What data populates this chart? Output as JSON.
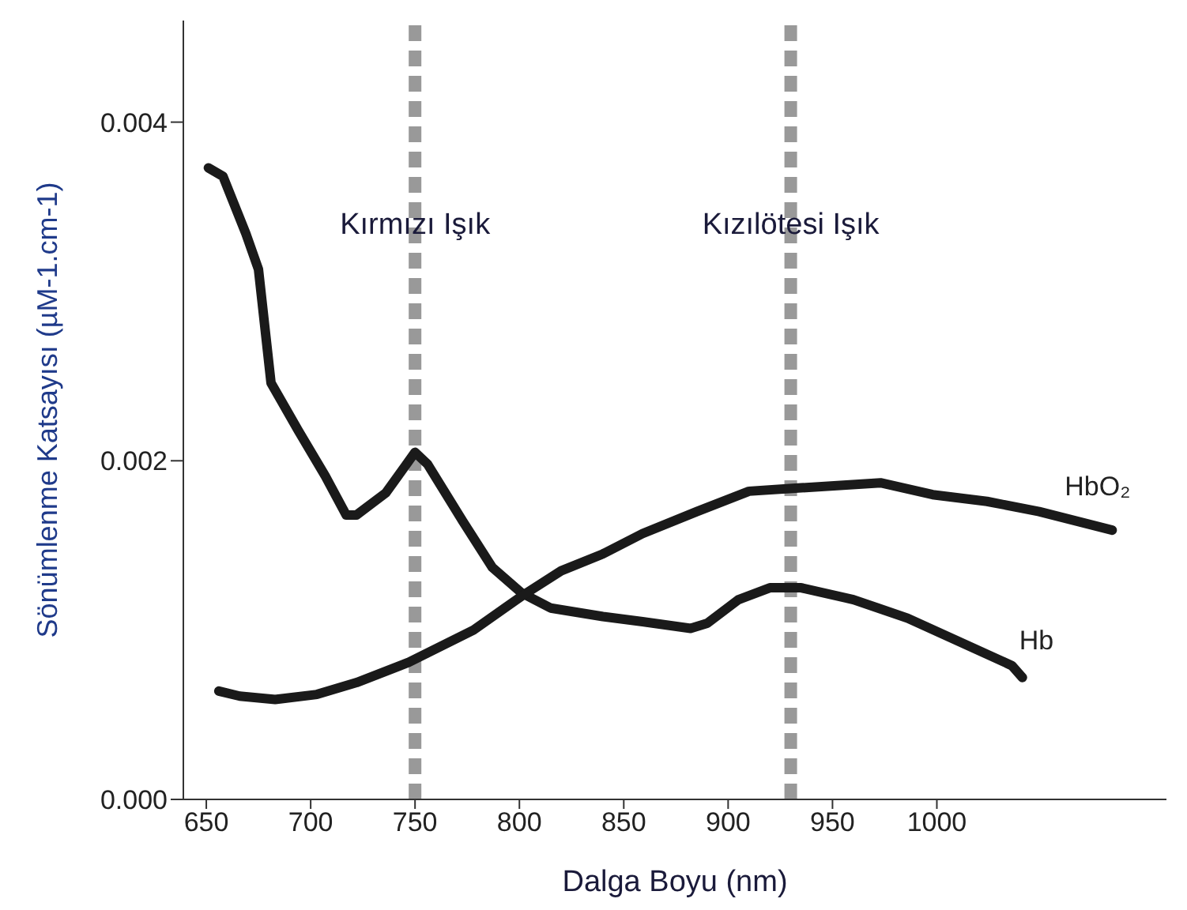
{
  "chart_data": {
    "type": "line",
    "xlabel": "Dalga Boyu (nm)",
    "ylabel": "Sönümlenme Katsayısı (µM-1.cm-1)",
    "xlim": [
      639,
      1110
    ],
    "xticks": [
      650,
      700,
      750,
      800,
      850,
      900,
      950,
      1000
    ],
    "ylim": [
      0,
      0.0046
    ],
    "yticks": [
      {
        "value": 0,
        "label": "0.000"
      },
      {
        "value": 0.002,
        "label": "0.002"
      },
      {
        "value": 0.004,
        "label": "0.004"
      }
    ],
    "legend": false,
    "line_style": "solid",
    "series": [
      {
        "name": "Hb",
        "color": "#1a1a1a",
        "x": [
          651,
          658,
          669,
          675,
          681,
          694,
          707,
          717,
          722,
          736,
          750,
          756,
          773,
          787,
          801,
          815,
          840,
          859,
          882,
          890,
          905,
          920,
          935,
          960,
          986,
          1011,
          1036,
          1041
        ],
        "values": [
          0.00373,
          0.00368,
          0.00334,
          0.00313,
          0.00246,
          0.00218,
          0.00191,
          0.00168,
          0.00168,
          0.00181,
          0.00205,
          0.00198,
          0.00164,
          0.00137,
          0.00122,
          0.00113,
          0.00108,
          0.00105,
          0.00101,
          0.00104,
          0.00118,
          0.00125,
          0.00125,
          0.00118,
          0.00107,
          0.00093,
          0.00079,
          0.00072
        ]
      },
      {
        "name": "HbO₂",
        "color": "#1a1a1a",
        "x": [
          656,
          666,
          683,
          703,
          722,
          747,
          778,
          801,
          820,
          840,
          859,
          885,
          910,
          935,
          973,
          998,
          1024,
          1049,
          1084
        ],
        "values": [
          0.00064,
          0.00061,
          0.00059,
          0.00062,
          0.00069,
          0.00081,
          0.001,
          0.0012,
          0.00135,
          0.00145,
          0.00157,
          0.0017,
          0.00182,
          0.00184,
          0.00187,
          0.0018,
          0.00176,
          0.0017,
          0.00159
        ]
      }
    ],
    "ref_lines": [
      {
        "axis": "x",
        "value": 750,
        "label": "Kırmızı Işık",
        "color": "#999999",
        "line_style": "dashed"
      },
      {
        "axis": "x",
        "value": 930,
        "label": "Kızılötesi Işık",
        "color": "#999999",
        "line_style": "dashed"
      }
    ]
  }
}
